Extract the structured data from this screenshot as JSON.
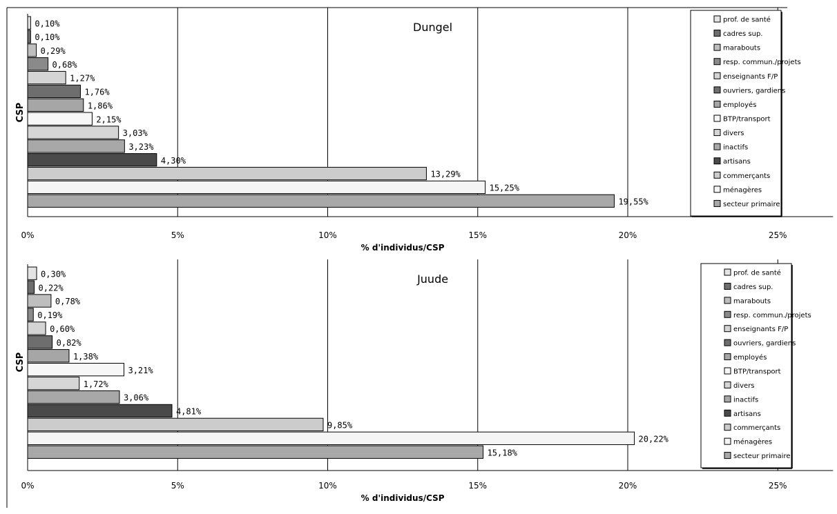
{
  "chart_data": [
    {
      "type": "bar",
      "orientation": "horizontal",
      "title": "Dungel",
      "xlabel": "% d'individus/CSP",
      "ylabel": "CSP",
      "xlim": [
        0,
        25
      ],
      "x_tick_labels": [
        "0%",
        "5%",
        "10%",
        "15%",
        "20%",
        "25%"
      ],
      "grid": "vertical lines at 5% intervals",
      "legend_placement": "right",
      "categories": [
        "prof. de santé",
        "cadres sup.",
        "marabouts",
        "resp. commun./projets",
        "enseignants F/P",
        "ouvriers, gardiens",
        "employés",
        "BTP/transport",
        "divers",
        "inactifs",
        "artisans",
        "commerçants",
        "ménagères",
        "secteur primaire"
      ],
      "values": [
        0.1,
        0.1,
        0.29,
        0.68,
        1.27,
        1.76,
        1.86,
        2.15,
        3.03,
        3.23,
        4.3,
        13.29,
        15.25,
        19.55
      ],
      "value_labels": [
        "0,10%",
        "0,10%",
        "0,29%",
        "0,68%",
        "1,27%",
        "1,76%",
        "1,86%",
        "2,15%",
        "3,03%",
        "3,23%",
        "4,30%",
        "13,29%",
        "15,25%",
        "19,55%"
      ]
    },
    {
      "type": "bar",
      "orientation": "horizontal",
      "title": "Juude",
      "xlabel": "% d'individus/CSP",
      "ylabel": "CSP",
      "xlim": [
        0,
        25
      ],
      "x_tick_labels": [
        "0%",
        "5%",
        "10%",
        "15%",
        "20%",
        "25%"
      ],
      "grid": "vertical lines at 5% intervals",
      "legend_placement": "right",
      "categories": [
        "prof. de santé",
        "cadres sup.",
        "marabouts",
        "resp. commun./projets",
        "enseignants F/P",
        "ouvriers, gardiens",
        "employés",
        "BTP/transport",
        "divers",
        "inactifs",
        "artisans",
        "commerçants",
        "ménagères",
        "secteur primaire"
      ],
      "values": [
        0.3,
        0.22,
        0.78,
        0.19,
        0.6,
        0.82,
        1.38,
        3.21,
        1.72,
        3.06,
        4.81,
        9.85,
        20.22,
        15.18
      ],
      "value_labels": [
        "0,30%",
        "0,22%",
        "0,78%",
        "0,19%",
        "0,60%",
        "0,82%",
        "1,38%",
        "3,21%",
        "1,72%",
        "3,06%",
        "4,81%",
        "9,85%",
        "20,22%",
        "15,18%"
      ]
    }
  ],
  "category_colors": [
    "#e4e4e4",
    "#6e6e6e",
    "#bebebe",
    "#8a8a8a",
    "#d4d4d4",
    "#6e6e6e",
    "#a6a6a6",
    "#f7f7f7",
    "#d6d6d6",
    "#a8a8a8",
    "#4a4a4a",
    "#cccccc",
    "#f5f5f5",
    "#a8a8a8"
  ],
  "legend_colors_juude": [
    "#e4e4e4",
    "#6e6e6e",
    "#bebebe",
    "#8a8a8a",
    "#d4d4d4",
    "#6e6e6e",
    "#a6a6a6",
    "#f7f7f7",
    "#d6d6d6",
    "#a8a8a8",
    "#4a4a4a",
    "#cccccc",
    "#f5f5f5",
    "#a8a8a8"
  ]
}
